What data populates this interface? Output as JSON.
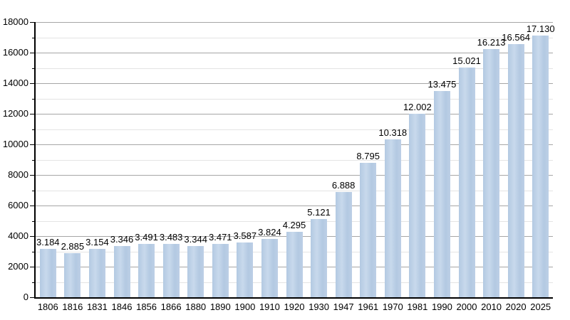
{
  "chart_data": {
    "type": "bar",
    "title": "",
    "xlabel": "",
    "ylabel": "",
    "categories": [
      "1806",
      "1816",
      "1831",
      "1846",
      "1856",
      "1866",
      "1880",
      "1890",
      "1900",
      "1910",
      "1920",
      "1930",
      "1947",
      "1961",
      "1970",
      "1981",
      "1990",
      "2000",
      "2010",
      "2020",
      "2025"
    ],
    "values": [
      3184,
      2885,
      3154,
      3346,
      3491,
      3483,
      3344,
      3471,
      3587,
      3824,
      4295,
      5121,
      6888,
      8795,
      10318,
      12002,
      13475,
      15021,
      16213,
      16564,
      17130
    ],
    "value_labels": [
      "3.184",
      "2.885",
      "3.154",
      "3.346",
      "3.491",
      "3.483",
      "3.344",
      "3.471",
      "3.587",
      "3.824",
      "4.295",
      "5.121",
      "6.888",
      "8.795",
      "10.318",
      "12.002",
      "13.475",
      "15.021",
      "16.213",
      "16.564",
      "17.130"
    ],
    "ylim": [
      0,
      18000
    ],
    "y_major_ticks": [
      0,
      2000,
      4000,
      6000,
      8000,
      10000,
      12000,
      14000,
      16000,
      18000
    ],
    "y_minor_step": 1000,
    "grid": true,
    "legend": "none",
    "colors": {
      "bar_fill": "#b9cde5",
      "major_grid": "#a6a6a6",
      "minor_grid": "#e4e4e4",
      "axis": "#000000",
      "text": "#000000",
      "background": "#ffffff"
    }
  }
}
